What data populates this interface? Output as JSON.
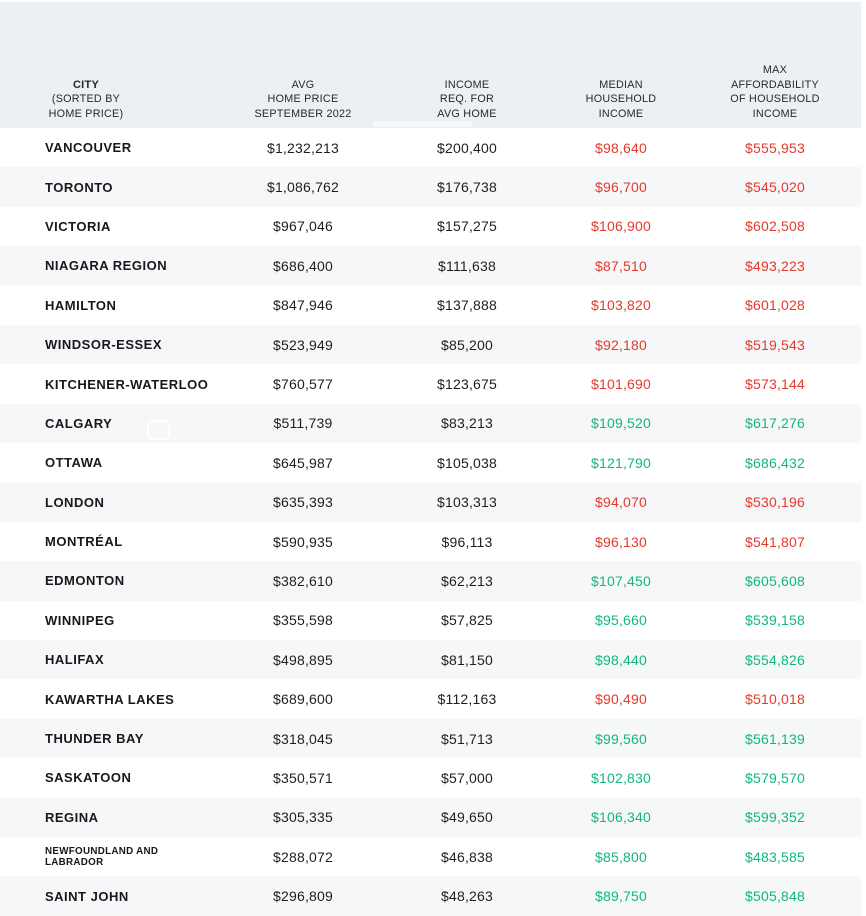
{
  "colors": {
    "insufficient": "#e23a2d",
    "sufficient": "#12b878",
    "header_bg": "#edf0f3",
    "stripe_bg": "#f6f7f8",
    "text_dark": "#1d1e20"
  },
  "table": {
    "header": {
      "city_title": "CITY",
      "city_subtitle": "(SORTED BY\nHOME PRICE)",
      "columns": [
        {
          "label": "AVG\nHOME PRICE\nSEPTEMBER 2022"
        },
        {
          "label": "INCOME\nREQ. FOR\nAVG HOME"
        },
        {
          "label": "MEDIAN\nHOUSEHOLD\nINCOME"
        },
        {
          "label": "MAX\nAFFORDABILITY\nOF HOUSEHOLD\nINCOME"
        }
      ]
    }
  },
  "chart_data": {
    "type": "table",
    "columns": [
      "CITY (SORTED BY HOME PRICE)",
      "AVG HOME PRICE SEPTEMBER 2022",
      "INCOME REQ. FOR AVG HOME",
      "MEDIAN HOUSEHOLD INCOME",
      "MAX AFFORDABILITY OF HOUSEHOLD INCOME"
    ],
    "rows": [
      {
        "city": "VANCOUVER",
        "avg_home_price": "$1,232,213",
        "income_required": "$200,400",
        "median_income": "$98,640",
        "max_affordability": "$555,953",
        "status": "insufficient"
      },
      {
        "city": "TORONTO",
        "avg_home_price": "$1,086,762",
        "income_required": "$176,738",
        "median_income": "$96,700",
        "max_affordability": "$545,020",
        "status": "insufficient"
      },
      {
        "city": "VICTORIA",
        "avg_home_price": "$967,046",
        "income_required": "$157,275",
        "median_income": "$106,900",
        "max_affordability": "$602,508",
        "status": "insufficient"
      },
      {
        "city": "NIAGARA REGION",
        "avg_home_price": "$686,400",
        "income_required": "$111,638",
        "median_income": "$87,510",
        "max_affordability": "$493,223",
        "status": "insufficient"
      },
      {
        "city": "HAMILTON",
        "avg_home_price": "$847,946",
        "income_required": "$137,888",
        "median_income": "$103,820",
        "max_affordability": "$601,028",
        "status": "insufficient"
      },
      {
        "city": "WINDSOR-ESSEX",
        "avg_home_price": "$523,949",
        "income_required": "$85,200",
        "median_income": "$92,180",
        "max_affordability": "$519,543",
        "status": "insufficient"
      },
      {
        "city": "KITCHENER-WATERLOO",
        "avg_home_price": "$760,577",
        "income_required": "$123,675",
        "median_income": "$101,690",
        "max_affordability": "$573,144",
        "status": "insufficient"
      },
      {
        "city": "CALGARY",
        "avg_home_price": "$511,739",
        "income_required": "$83,213",
        "median_income": "$109,520",
        "max_affordability": "$617,276",
        "status": "sufficient"
      },
      {
        "city": "OTTAWA",
        "avg_home_price": "$645,987",
        "income_required": "$105,038",
        "median_income": "$121,790",
        "max_affordability": "$686,432",
        "status": "sufficient"
      },
      {
        "city": "LONDON",
        "avg_home_price": "$635,393",
        "income_required": "$103,313",
        "median_income": "$94,070",
        "max_affordability": "$530,196",
        "status": "insufficient"
      },
      {
        "city": "MONTRÉAL",
        "avg_home_price": "$590,935",
        "income_required": "$96,113",
        "median_income": "$96,130",
        "max_affordability": "$541,807",
        "status": "insufficient"
      },
      {
        "city": "EDMONTON",
        "avg_home_price": "$382,610",
        "income_required": "$62,213",
        "median_income": "$107,450",
        "max_affordability": "$605,608",
        "status": "sufficient"
      },
      {
        "city": "WINNIPEG",
        "avg_home_price": "$355,598",
        "income_required": "$57,825",
        "median_income": "$95,660",
        "max_affordability": "$539,158",
        "status": "sufficient"
      },
      {
        "city": "HALIFAX",
        "avg_home_price": "$498,895",
        "income_required": "$81,150",
        "median_income": "$98,440",
        "max_affordability": "$554,826",
        "status": "sufficient"
      },
      {
        "city": "KAWARTHA LAKES",
        "avg_home_price": "$689,600",
        "income_required": "$112,163",
        "median_income": "$90,490",
        "max_affordability": "$510,018",
        "status": "insufficient"
      },
      {
        "city": "THUNDER BAY",
        "avg_home_price": "$318,045",
        "income_required": "$51,713",
        "median_income": "$99,560",
        "max_affordability": "$561,139",
        "status": "sufficient"
      },
      {
        "city": "SASKATOON",
        "avg_home_price": "$350,571",
        "income_required": "$57,000",
        "median_income": "$102,830",
        "max_affordability": "$579,570",
        "status": "sufficient"
      },
      {
        "city": "REGINA",
        "avg_home_price": "$305,335",
        "income_required": "$49,650",
        "median_income": "$106,340",
        "max_affordability": "$599,352",
        "status": "sufficient"
      },
      {
        "city": "NEWFOUNDLAND AND LABRADOR",
        "avg_home_price": "$288,072",
        "income_required": "$46,838",
        "median_income": "$85,800",
        "max_affordability": "$483,585",
        "status": "sufficient",
        "small_city": true
      },
      {
        "city": "SAINT JOHN",
        "avg_home_price": "$296,809",
        "income_required": "$48,263",
        "median_income": "$89,750",
        "max_affordability": "$505,848",
        "status": "sufficient"
      }
    ]
  }
}
